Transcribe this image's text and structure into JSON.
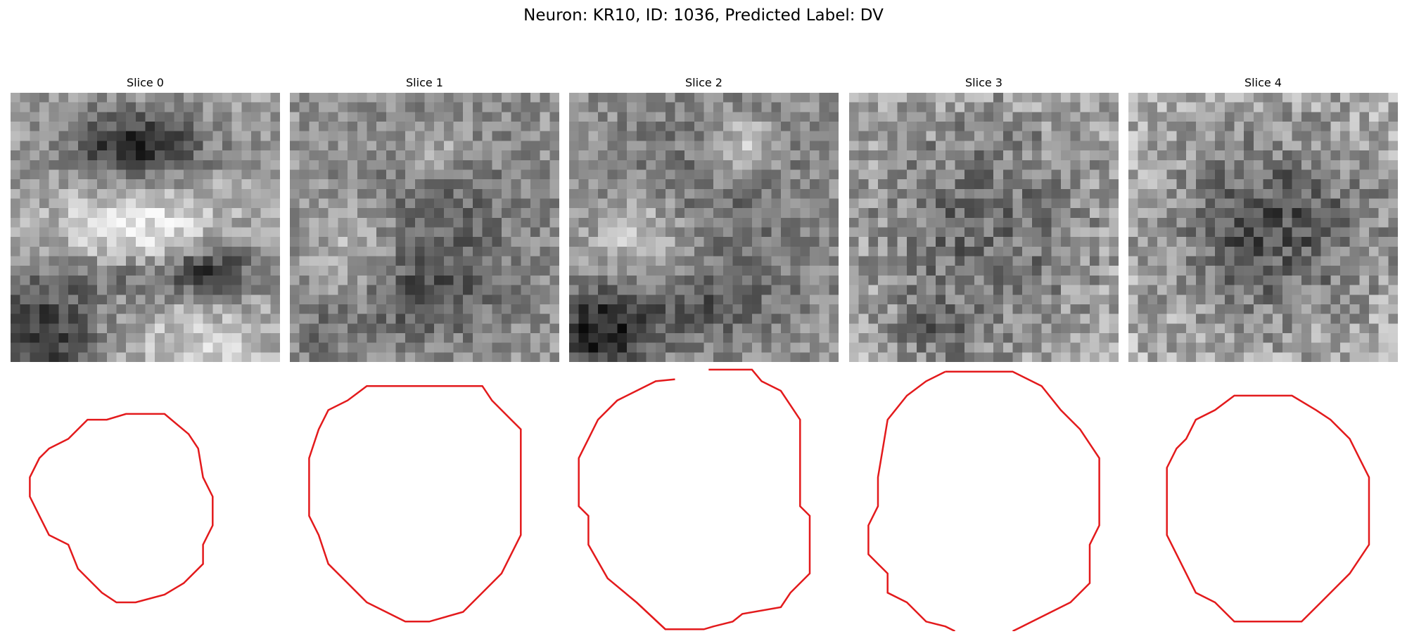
{
  "figure": {
    "title": "Neuron: KR10, ID: 1036, Predicted Label: DV"
  },
  "panels": [
    {
      "title": "Slice 0"
    },
    {
      "title": "Slice 1"
    },
    {
      "title": "Slice 2"
    },
    {
      "title": "Slice 3"
    },
    {
      "title": "Slice 4"
    }
  ],
  "colors": {
    "contour": "#e31a1c",
    "colormap": "grayscale"
  }
}
